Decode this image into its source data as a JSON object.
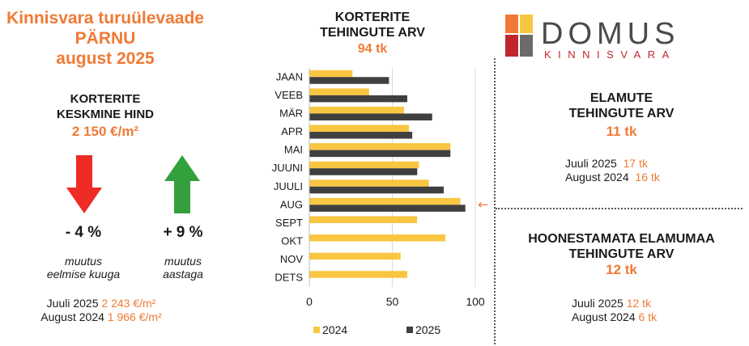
{
  "header": {
    "line1": "Kinnisvara turuülevaade",
    "line2": "PÄRNU",
    "line3": "august 2025"
  },
  "avg_price": {
    "title1": "KORTERITE",
    "title2": "KESKMINE HIND",
    "value": "2 150 €/m²",
    "monthly": {
      "change": "- 4 %",
      "caption1": "muutus",
      "caption2": "eelmise kuuga",
      "arrow": "down-arrow-red"
    },
    "yearly": {
      "change": "+ 9 %",
      "caption1": "muutus",
      "caption2": "aastaga",
      "arrow": "up-arrow-green"
    },
    "compare": [
      {
        "label": "Juuli 2025",
        "value": "2 243 €/m²"
      },
      {
        "label": "August 2024",
        "value": "1 966 €/m²"
      }
    ]
  },
  "chart_title": {
    "line1": "KORTERITE",
    "line2": "TEHINGUTE ARV",
    "count": "94 tk"
  },
  "chart_data": {
    "type": "bar",
    "orientation": "horizontal",
    "categories": [
      "JAAN",
      "VEEB",
      "MÄR",
      "APR",
      "MAI",
      "JUUNI",
      "JUULI",
      "AUG",
      "SEPT",
      "OKT",
      "NOV",
      "DETS"
    ],
    "series": [
      {
        "name": "2024",
        "color": "#f9c642",
        "values": [
          26,
          36,
          57,
          60,
          85,
          66,
          72,
          91,
          65,
          82,
          55,
          59
        ]
      },
      {
        "name": "2025",
        "color": "#3f3f3f",
        "values": [
          48,
          59,
          74,
          62,
          85,
          65,
          81,
          94,
          null,
          null,
          null,
          null
        ]
      }
    ],
    "xlim": [
      0,
      100
    ],
    "xticks": [
      0,
      50,
      100
    ],
    "grid": true,
    "legend": "bottom",
    "highlight": "AUG",
    "highlight_marker": "←"
  },
  "logo": {
    "name": "DOMUS",
    "sub": "KINNISVARA",
    "colors": [
      "#f07a35",
      "#f9c642",
      "#c0272d",
      "#6b6b6b"
    ]
  },
  "houses": {
    "title1": "ELAMUTE",
    "title2": "TEHINGUTE ARV",
    "value": "11 tk",
    "compare": [
      {
        "label": "Juuli 2025",
        "value": "17 tk"
      },
      {
        "label": "August 2024",
        "value": "16 tk"
      }
    ]
  },
  "land": {
    "title1": "HOONESTAMATA ELAMUMAA",
    "title2": "TEHINGUTE ARV",
    "value": "12 tk",
    "compare": [
      {
        "label": "Juuli 2025",
        "value": "12 tk"
      },
      {
        "label": "August 2024",
        "value": "6 tk"
      }
    ]
  }
}
